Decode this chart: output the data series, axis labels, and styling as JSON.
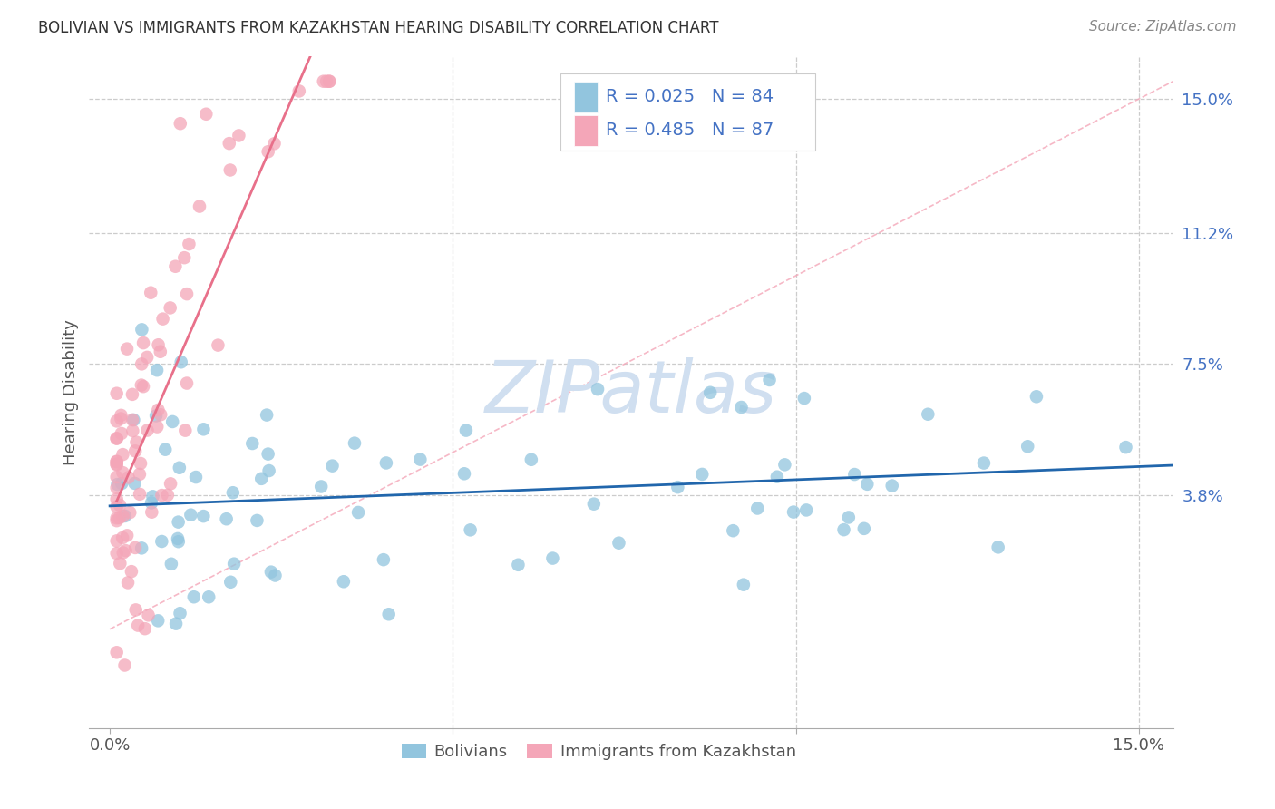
{
  "title": "BOLIVIAN VS IMMIGRANTS FROM KAZAKHSTAN HEARING DISABILITY CORRELATION CHART",
  "source": "Source: ZipAtlas.com",
  "ylabel": "Hearing Disability",
  "y_ticks_right": [
    0.038,
    0.075,
    0.112,
    0.15
  ],
  "y_tick_labels_right": [
    "3.8%",
    "7.5%",
    "11.2%",
    "15.0%"
  ],
  "xlim": [
    0.0,
    0.155
  ],
  "ylim": [
    -0.028,
    0.162
  ],
  "legend_blue_r": "R = 0.025",
  "legend_blue_n": "N = 84",
  "legend_pink_r": "R = 0.485",
  "legend_pink_n": "N = 87",
  "blue_color": "#92c5de",
  "pink_color": "#f4a6b8",
  "blue_line_color": "#2166ac",
  "pink_line_color": "#e8708a",
  "diag_line_color": "#f4a6b8",
  "legend_text_color": "#4472c4",
  "legend_label_blue": "Bolivians",
  "legend_label_pink": "Immigrants from Kazakhstan",
  "watermark": "ZIPatlas",
  "watermark_color": "#d0dff0",
  "title_color": "#333333",
  "source_color": "#888888",
  "grid_color": "#cccccc"
}
